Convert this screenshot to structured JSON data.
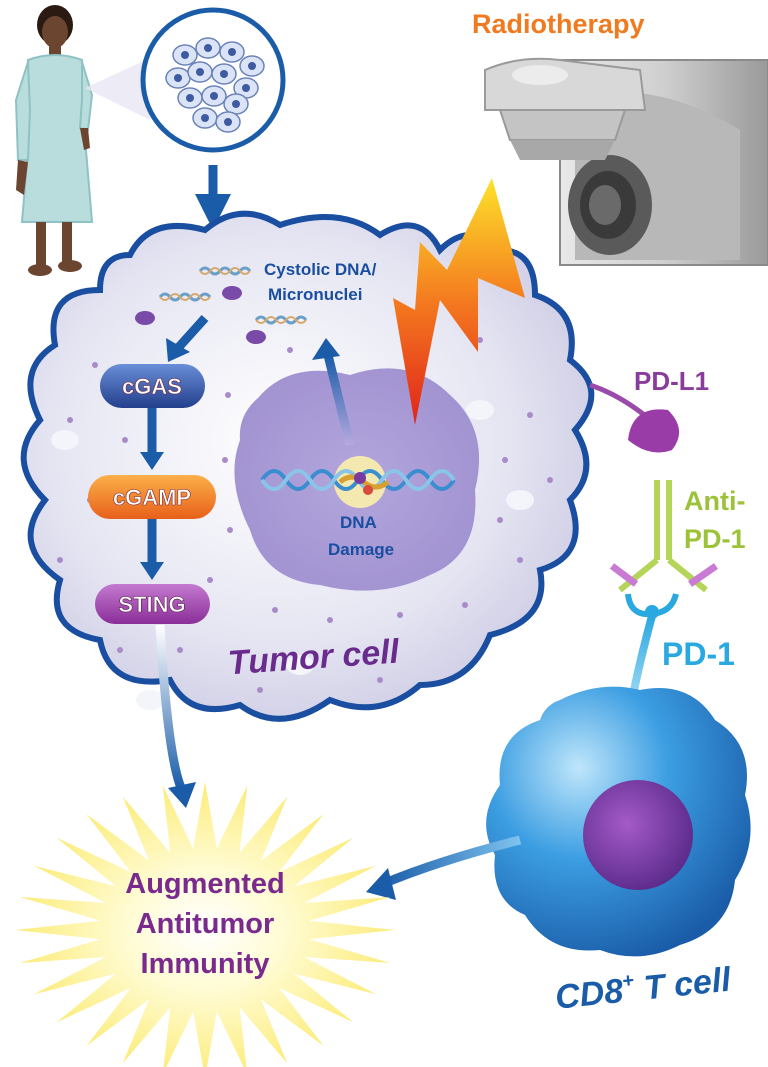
{
  "labels": {
    "radiotherapy": "Radiotherapy",
    "cytosolic_line1": "Cystolic DNA/",
    "cytosolic_line2": "Micronuclei",
    "cgas": "cGAS",
    "cgamp": "cGAMP",
    "sting": "STING",
    "dna_damage_line1": "DNA",
    "dna_damage_line2": "Damage",
    "tumor_cell": "Tumor cell",
    "pd_l1": "PD-L1",
    "anti_pd1_line1": "Anti-",
    "anti_pd1_line2": "PD-1",
    "pd1": "PD-1",
    "immunity_line1": "Augmented",
    "immunity_line2": "Antitumor",
    "immunity_line3": "Immunity",
    "cd8_prefix": "CD8",
    "cd8_sup": "+",
    "cd8_suffix": " T cell"
  },
  "colors": {
    "radiotherapy": "#F07A20",
    "tumor_label": "#6A2C8C",
    "pd_l1": "#8A3C9C",
    "anti_pd1": "#9CC23A",
    "pd1": "#2AA8E0",
    "arrow": "#1A5CA8",
    "cd8": "#1A5CA8",
    "immunity_text": "#7A2A8C",
    "cgas": "#2E4FA0",
    "cgamp": "#F07A20",
    "sting": "#9A3CA0"
  },
  "icons": {
    "patient": "patient-figure",
    "biopsy": "tumor-biopsy-magnifier",
    "machine": "radiotherapy-machine",
    "lightning": "radiation-lightning-bolt",
    "helix": "dna-double-helix",
    "burst": "immunity-starburst"
  }
}
